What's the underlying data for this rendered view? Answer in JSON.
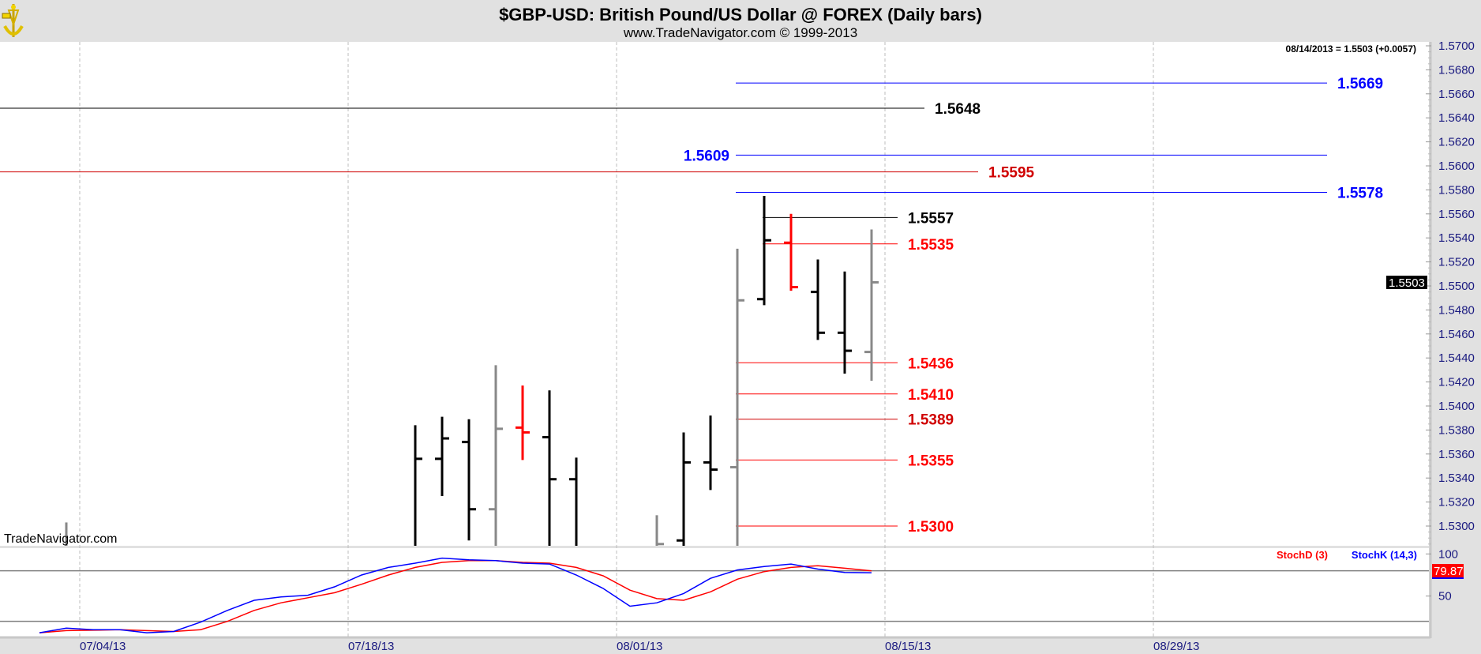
{
  "header": {
    "title": "$GBP-USD:  British Pound/US Dollar @ FOREX  (Daily bars)",
    "subtitle": "www.TradeNavigator.com © 1999-2013",
    "logo_icon": "sextant-logo-icon"
  },
  "readout": "08/14/2013 = 1.5503 (+0.0057)",
  "watermark": "TradeNavigator.com",
  "last_price_label": "1.5503",
  "stoch_value_label": "79.87",
  "colors": {
    "up_bar": "#000000",
    "neutral_bar": "#888888",
    "down_bar": "#ff0000",
    "blue_level": "#0000ff",
    "red_level": "#ff0000",
    "black_level": "#000000",
    "stoch_k": "#0000ff",
    "stoch_d": "#ff0000"
  },
  "chart_data": [
    {
      "type": "ohlc",
      "ylim": [
        1.528,
        1.571
      ],
      "y_ticks": [
        "1.5700",
        "1.5680",
        "1.5660",
        "1.5640",
        "1.5620",
        "1.5600",
        "1.5580",
        "1.5560",
        "1.5540",
        "1.5520",
        "1.5500",
        "1.5480",
        "1.5460",
        "1.5440",
        "1.5420",
        "1.5400",
        "1.5380",
        "1.5360",
        "1.5340",
        "1.5320",
        "1.5300"
      ],
      "x_ticks": [
        "07/04/13",
        "07/18/13",
        "08/01/13",
        "08/15/13",
        "08/29/13"
      ],
      "grid": "vertical dashed",
      "bars": [
        {
          "date": "07/03/13",
          "open": null,
          "high": 1.5303,
          "low": null,
          "close": null,
          "color": "gray"
        },
        {
          "date": "07/22/13",
          "open": null,
          "high": 1.5384,
          "low": null,
          "close": 1.5356,
          "color": "black"
        },
        {
          "date": "07/23/13",
          "open": 1.5356,
          "high": 1.5391,
          "low": 1.5325,
          "close": 1.5373,
          "color": "black"
        },
        {
          "date": "07/24/13",
          "open": 1.537,
          "high": 1.5389,
          "low": 1.5288,
          "close": 1.5314,
          "color": "black"
        },
        {
          "date": "07/25/13",
          "open": 1.5314,
          "high": 1.5434,
          "low": null,
          "close": 1.5381,
          "color": "gray"
        },
        {
          "date": "07/26/13",
          "open": 1.5382,
          "high": 1.5417,
          "low": 1.5355,
          "close": 1.5378,
          "color": "red"
        },
        {
          "date": "07/29/13",
          "open": 1.5374,
          "high": 1.5413,
          "low": null,
          "close": 1.5339,
          "color": "black"
        },
        {
          "date": "07/30/13",
          "open": 1.5339,
          "high": 1.5357,
          "low": null,
          "close": null,
          "color": "black"
        },
        {
          "date": "08/02/13",
          "open": null,
          "high": 1.5309,
          "low": null,
          "close": 1.5285,
          "color": "gray"
        },
        {
          "date": "08/05/13",
          "open": 1.5288,
          "high": 1.5378,
          "low": null,
          "close": 1.5353,
          "color": "black"
        },
        {
          "date": "08/06/13",
          "open": 1.5353,
          "high": 1.5392,
          "low": 1.533,
          "close": 1.5347,
          "color": "black"
        },
        {
          "date": "08/07/13",
          "open": 1.5349,
          "high": 1.5531,
          "low": null,
          "close": 1.5488,
          "color": "gray"
        },
        {
          "date": "08/08/13",
          "open": 1.5489,
          "high": 1.5575,
          "low": 1.5484,
          "close": 1.5538,
          "color": "black"
        },
        {
          "date": "08/09/13",
          "open": 1.5536,
          "high": 1.556,
          "low": 1.5496,
          "close": 1.5499,
          "color": "red"
        },
        {
          "date": "08/12/13",
          "open": 1.5495,
          "high": 1.5522,
          "low": 1.5455,
          "close": 1.5461,
          "color": "black"
        },
        {
          "date": "08/13/13",
          "open": 1.5461,
          "high": 1.5512,
          "low": 1.5427,
          "close": 1.5446,
          "color": "black"
        },
        {
          "date": "08/14/13",
          "open": 1.5445,
          "high": 1.5547,
          "low": 1.5421,
          "close": 1.5503,
          "color": "gray"
        }
      ],
      "levels": [
        {
          "value": "1.5669",
          "color": "blue",
          "start": "08/07/13",
          "label_side": "right"
        },
        {
          "value": "1.5648",
          "color": "black",
          "start": null,
          "label_side": "right"
        },
        {
          "value": "1.5609",
          "color": "blue",
          "start": "08/07/13",
          "label_side": "left"
        },
        {
          "value": "1.5595",
          "color": "darkred",
          "start": null,
          "label_side": "right"
        },
        {
          "value": "1.5578",
          "color": "blue",
          "start": "08/07/13",
          "label_side": "right"
        },
        {
          "value": "1.5557",
          "color": "black",
          "start": "08/08/13",
          "label_side": "right"
        },
        {
          "value": "1.5535",
          "color": "red",
          "start": "08/08/13",
          "label_side": "right"
        },
        {
          "value": "1.5436",
          "color": "red",
          "start": "08/07/13",
          "label_side": "right"
        },
        {
          "value": "1.5410",
          "color": "red",
          "start": "08/07/13",
          "label_side": "right"
        },
        {
          "value": "1.5389",
          "color": "darkred",
          "start": "08/07/13",
          "label_side": "right"
        },
        {
          "value": "1.5355",
          "color": "red",
          "start": "08/07/13",
          "label_side": "right"
        },
        {
          "value": "1.5300",
          "color": "red",
          "start": "08/07/13",
          "label_side": "right"
        }
      ]
    },
    {
      "type": "line",
      "ylim": [
        0,
        100
      ],
      "y_ticks": [
        "100",
        "50"
      ],
      "reference_lines": [
        80,
        20
      ],
      "x": [
        "07/02/13",
        "07/03/13",
        "07/04/13",
        "07/05/13",
        "07/08/13",
        "07/09/13",
        "07/10/13",
        "07/11/13",
        "07/12/13",
        "07/15/13",
        "07/16/13",
        "07/17/13",
        "07/18/13",
        "07/19/13",
        "07/22/13",
        "07/23/13",
        "07/24/13",
        "07/25/13",
        "07/26/13",
        "07/29/13",
        "07/30/13",
        "07/31/13",
        "08/01/13",
        "08/02/13",
        "08/05/13",
        "08/06/13",
        "08/07/13",
        "08/08/13",
        "08/09/13",
        "08/12/13",
        "08/13/13",
        "08/14/13"
      ],
      "series": [
        {
          "name": "StochD (3)",
          "color": "#ff0000",
          "values": [
            6.5,
            9,
            9.5,
            10,
            9,
            8,
            10,
            20,
            33,
            42,
            48,
            54,
            64,
            75,
            84,
            90,
            92,
            92,
            90,
            89,
            84,
            74,
            57,
            47,
            45,
            55,
            70,
            79,
            84,
            86,
            83,
            79.87
          ]
        },
        {
          "name": "StochK (14,3)",
          "color": "#0000ff",
          "values": [
            6.5,
            12,
            10,
            10,
            6.5,
            8,
            19,
            33,
            45,
            49,
            51,
            61,
            75,
            84,
            89,
            95,
            93,
            92,
            89,
            88,
            75,
            59,
            38,
            42,
            53,
            71,
            81,
            85,
            88,
            82,
            78,
            77.7
          ]
        }
      ]
    }
  ]
}
